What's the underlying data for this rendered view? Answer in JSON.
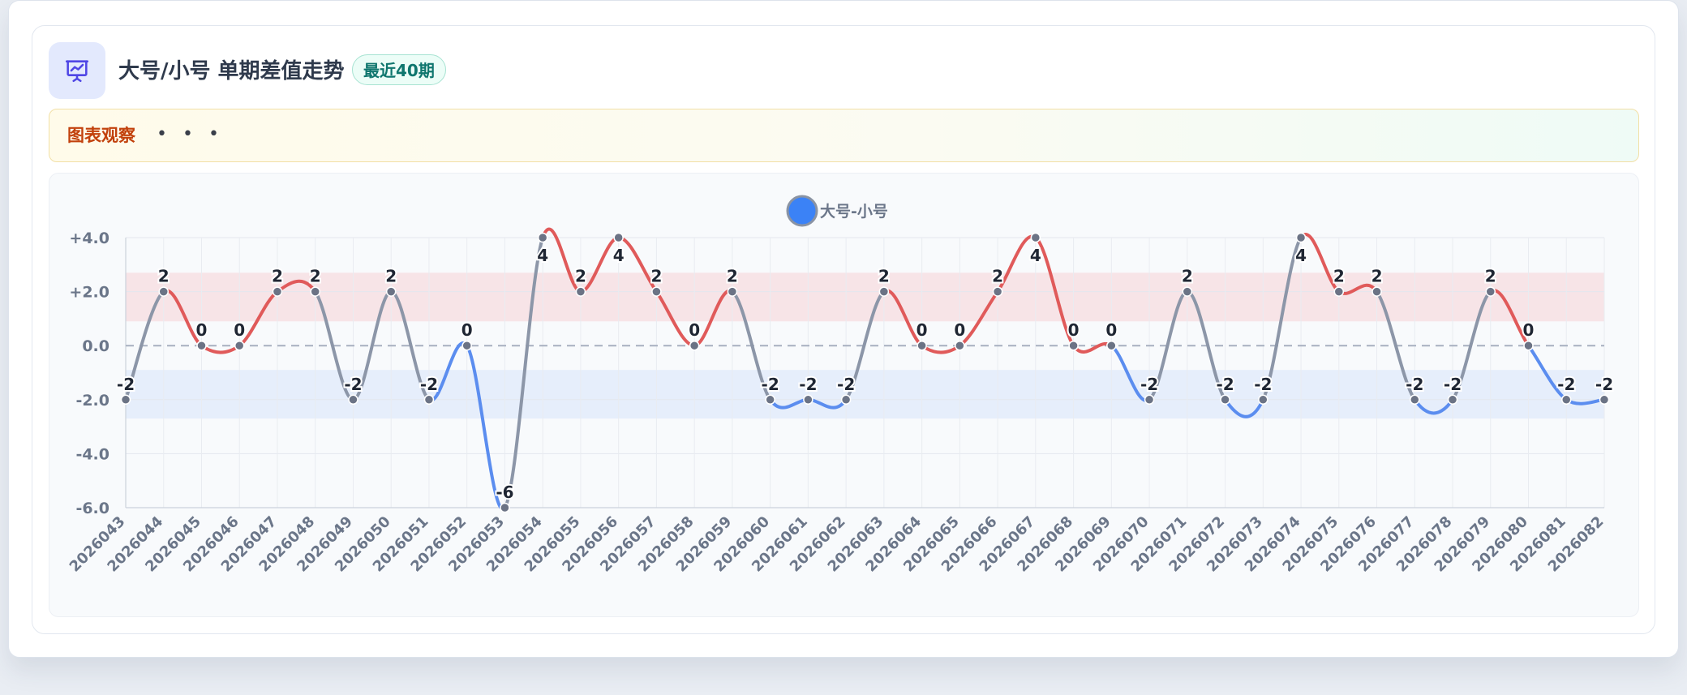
{
  "header": {
    "title": "大号/小号 单期差值走势",
    "badge": "最近40期"
  },
  "observation": {
    "label": "图表观察",
    "dots": "• • •"
  },
  "icons": {
    "header_icon": "presentation-chart-icon"
  },
  "colors": {
    "up": "#e05a5a",
    "down": "#5b8def",
    "neutral": "#8c96a8",
    "legend": "#3b82f6",
    "accent_badge": "#0f766e",
    "observation_label": "#c2410c"
  },
  "chart_data": {
    "type": "line",
    "categories": [
      "2026043",
      "2026044",
      "2026045",
      "2026046",
      "2026047",
      "2026048",
      "2026049",
      "2026050",
      "2026051",
      "2026052",
      "2026053",
      "2026054",
      "2026055",
      "2026056",
      "2026057",
      "2026058",
      "2026059",
      "2026060",
      "2026061",
      "2026062",
      "2026063",
      "2026064",
      "2026065",
      "2026066",
      "2026067",
      "2026068",
      "2026069",
      "2026070",
      "2026071",
      "2026072",
      "2026073",
      "2026074",
      "2026075",
      "2026076",
      "2026077",
      "2026078",
      "2026079",
      "2026080",
      "2026081",
      "2026082"
    ],
    "series": [
      {
        "name": "大号-小号",
        "values": [
          -2,
          2,
          0,
          0,
          2,
          2,
          -2,
          2,
          -2,
          0,
          -6,
          4,
          2,
          4,
          2,
          0,
          2,
          -2,
          -2,
          -2,
          2,
          0,
          0,
          2,
          4,
          0,
          0,
          -2,
          2,
          -2,
          -2,
          4,
          2,
          2,
          -2,
          -2,
          2,
          0,
          -2,
          -2
        ]
      }
    ],
    "y_ticks": [
      "+4.0",
      "+2.0",
      "0.0",
      "-2.0",
      "-4.0",
      "-6.0"
    ],
    "ylim": [
      -6,
      4
    ],
    "bands": [
      {
        "from": 0.9,
        "to": 2.7,
        "color": "#f7e4e7"
      },
      {
        "from": -2.7,
        "to": -0.9,
        "color": "#e6eefb"
      }
    ],
    "reference_line": 0,
    "grid": true,
    "legend_position": "top-center",
    "title": "",
    "xlabel": "",
    "ylabel": ""
  }
}
